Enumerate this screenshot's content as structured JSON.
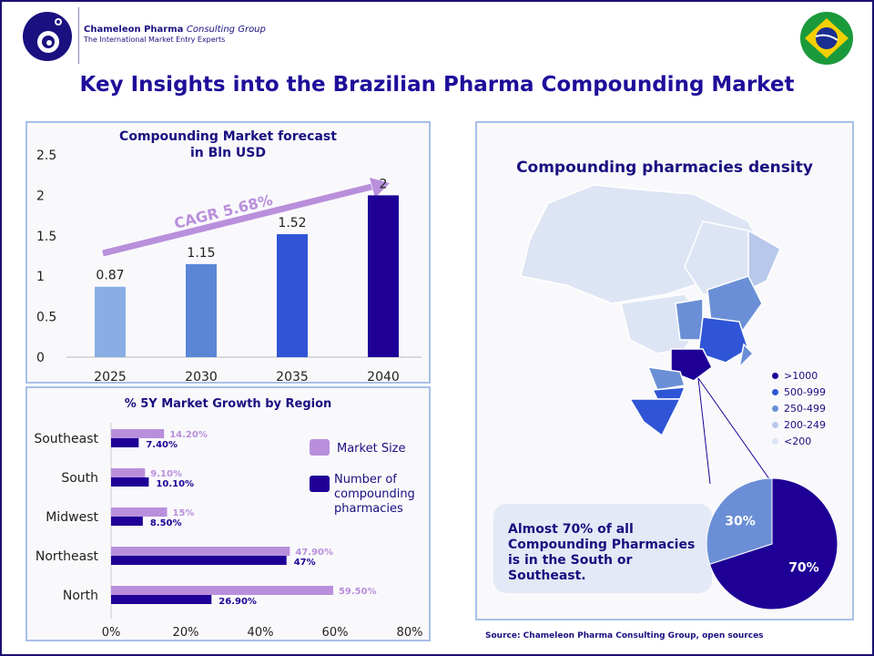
{
  "header": {
    "company_bold": "Chameleon Pharma",
    "company_italic": "Consulting Group",
    "tagline": "The International Market Entry Experts",
    "flag_icon": "brazil-flag-icon"
  },
  "title": "Key Insights into the Brazilian Pharma Compounding Market",
  "chart_data": [
    {
      "type": "bar",
      "title": "Compounding Market forecast in Bln USD",
      "title_lines": [
        "Compounding Market forecast",
        "in Bln USD"
      ],
      "categories": [
        "2025",
        "2030",
        "2035",
        "2040"
      ],
      "values": [
        0.87,
        1.15,
        1.52,
        2
      ],
      "value_labels": [
        "0.87",
        "1.15",
        "1.52",
        "2"
      ],
      "ylim": [
        0,
        2.5
      ],
      "yticks": [
        "0",
        "0.5",
        "1",
        "1.5",
        "2",
        "2.5"
      ],
      "colors": [
        "#8aaee3",
        "#5b86d6",
        "#2f55d6",
        "#1e0096"
      ],
      "annotation": "CAGR 5.68%",
      "grid": false
    },
    {
      "type": "bar",
      "orientation": "horizontal",
      "title": "% 5Y Market Growth by Region",
      "categories": [
        "Southeast",
        "South",
        "Midwest",
        "Northeast",
        "North"
      ],
      "series": [
        {
          "name": "Market Size",
          "values": [
            14.2,
            9.1,
            15,
            47.9,
            59.5
          ],
          "labels": [
            "14.20%",
            "9.10%",
            "15%",
            "47.90%",
            "59.50%"
          ],
          "color": "#b98fdc"
        },
        {
          "name": "Number of compounding pharmacies",
          "values": [
            7.4,
            10.1,
            8.5,
            47,
            26.9
          ],
          "labels": [
            "7.40%",
            "10.10%",
            "8.50%",
            "47%",
            "26.90%"
          ],
          "color": "#1e0096"
        }
      ],
      "xlim": [
        0,
        80
      ],
      "xticks": [
        "0%",
        "20%",
        "40%",
        "60%",
        "80%"
      ],
      "legend": "right",
      "grid": false
    },
    {
      "type": "pie",
      "values": [
        70,
        30
      ],
      "labels": [
        "70%",
        "30%"
      ],
      "colors": [
        "#1e0096",
        "#6b8fd6"
      ]
    }
  ],
  "map": {
    "title": "Compounding pharmacies density",
    "legend": [
      {
        "label": ">1000",
        "color": "#1e0096"
      },
      {
        "label": "500-999",
        "color": "#2f55d6"
      },
      {
        "label": "250-499",
        "color": "#6b8fd6"
      },
      {
        "label": "200-249",
        "color": "#b7c8ea"
      },
      {
        "label": "<200",
        "color": "#dde5f4"
      }
    ]
  },
  "callout": "Almost 70% of all Compounding Pharmacies is in the South or Southeast.",
  "source": "Source: Chameleon Pharma Consulting Group, open sources"
}
